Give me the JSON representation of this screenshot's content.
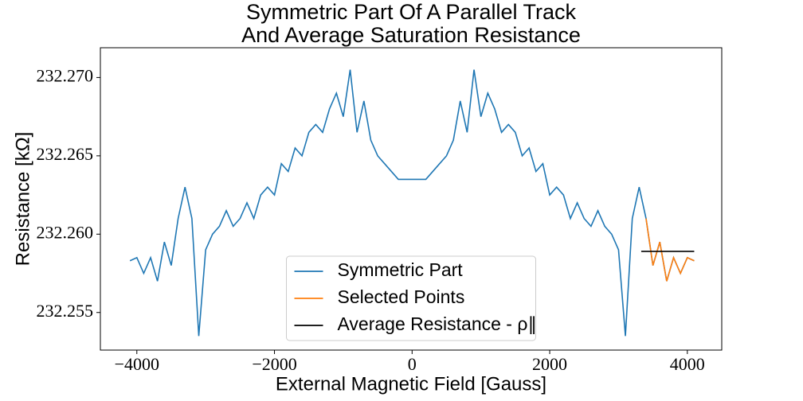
{
  "chart_data": {
    "type": "line",
    "title": [
      "Symmetric Part Of A Parallel Track",
      "And Average Saturation Resistance"
    ],
    "x_label": "External Magnetic Field [Gauss]",
    "y_label": "Resistance [kΩ]",
    "xlim": [
      -4530,
      4500
    ],
    "ylim": [
      232.2526,
      232.2719
    ],
    "xticks": [
      {
        "value": -4000,
        "label": "−4000"
      },
      {
        "value": -2000,
        "label": "−2000"
      },
      0,
      2000,
      4000
    ],
    "yticks": [
      232.255,
      {
        "value": 232.26,
        "label": "232.260"
      },
      232.265,
      {
        "value": 232.27,
        "label": "232.270"
      }
    ],
    "legend": "lower center",
    "series": [
      {
        "name": "Symmetric Part",
        "color": "#1f77b4",
        "x": [
          -4100,
          -4000,
          -3900,
          -3800,
          -3700,
          -3600,
          -3500,
          -3400,
          -3300,
          -3200,
          -3100,
          -3000,
          -2900,
          -2800,
          -2700,
          -2600,
          -2500,
          -2400,
          -2300,
          -2200,
          -2100,
          -2000,
          -1900,
          -1800,
          -1700,
          -1600,
          -1500,
          -1400,
          -1300,
          -1200,
          -1100,
          -1000,
          -900,
          -800,
          -700,
          -600,
          -500,
          -400,
          -300,
          -200,
          -100,
          0,
          100,
          200,
          300,
          400,
          500,
          600,
          700,
          800,
          900,
          1000,
          1100,
          1200,
          1300,
          1400,
          1500,
          1600,
          1700,
          1800,
          1900,
          2000,
          2100,
          2200,
          2300,
          2400,
          2500,
          2600,
          2700,
          2800,
          2900,
          3000,
          3100,
          3200,
          3300,
          3400,
          3500,
          3600,
          3700,
          3800,
          3900,
          4000,
          4100
        ],
        "values": [
          232.2583,
          232.2585,
          232.2575,
          232.2585,
          232.257,
          232.2595,
          232.258,
          232.261,
          232.263,
          232.261,
          232.2535,
          232.259,
          232.26,
          232.2605,
          232.2615,
          232.2605,
          232.261,
          232.262,
          232.261,
          232.2625,
          232.263,
          232.2625,
          232.2645,
          232.264,
          232.2655,
          232.265,
          232.2665,
          232.267,
          232.2665,
          232.268,
          232.269,
          232.2675,
          232.2705,
          232.2665,
          232.2685,
          232.266,
          232.265,
          232.2645,
          232.264,
          232.2635,
          232.2635,
          232.2635,
          232.2635,
          232.2635,
          232.264,
          232.2645,
          232.265,
          232.266,
          232.2685,
          232.2665,
          232.2705,
          232.2675,
          232.269,
          232.268,
          232.2665,
          232.267,
          232.2665,
          232.265,
          232.2655,
          232.264,
          232.2645,
          232.2625,
          232.263,
          232.2625,
          232.261,
          232.262,
          232.261,
          232.2605,
          232.2615,
          232.2605,
          232.26,
          232.259,
          232.2535,
          232.261,
          232.263,
          232.261,
          232.258,
          232.2595,
          232.257,
          232.2585,
          232.2575,
          232.2585,
          232.2583
        ]
      },
      {
        "name": "Selected Points",
        "color": "#ff7f0e",
        "x": [
          3400,
          3500,
          3600,
          3700,
          3800,
          3900,
          4000,
          4100
        ],
        "values": [
          232.261,
          232.258,
          232.2595,
          232.257,
          232.2585,
          232.2575,
          232.2585,
          232.2583
        ]
      },
      {
        "name": "Average Resistance - ρ∥",
        "color": "#000000",
        "x": [
          3330,
          4100
        ],
        "values": [
          232.2589,
          232.2589
        ]
      }
    ]
  }
}
